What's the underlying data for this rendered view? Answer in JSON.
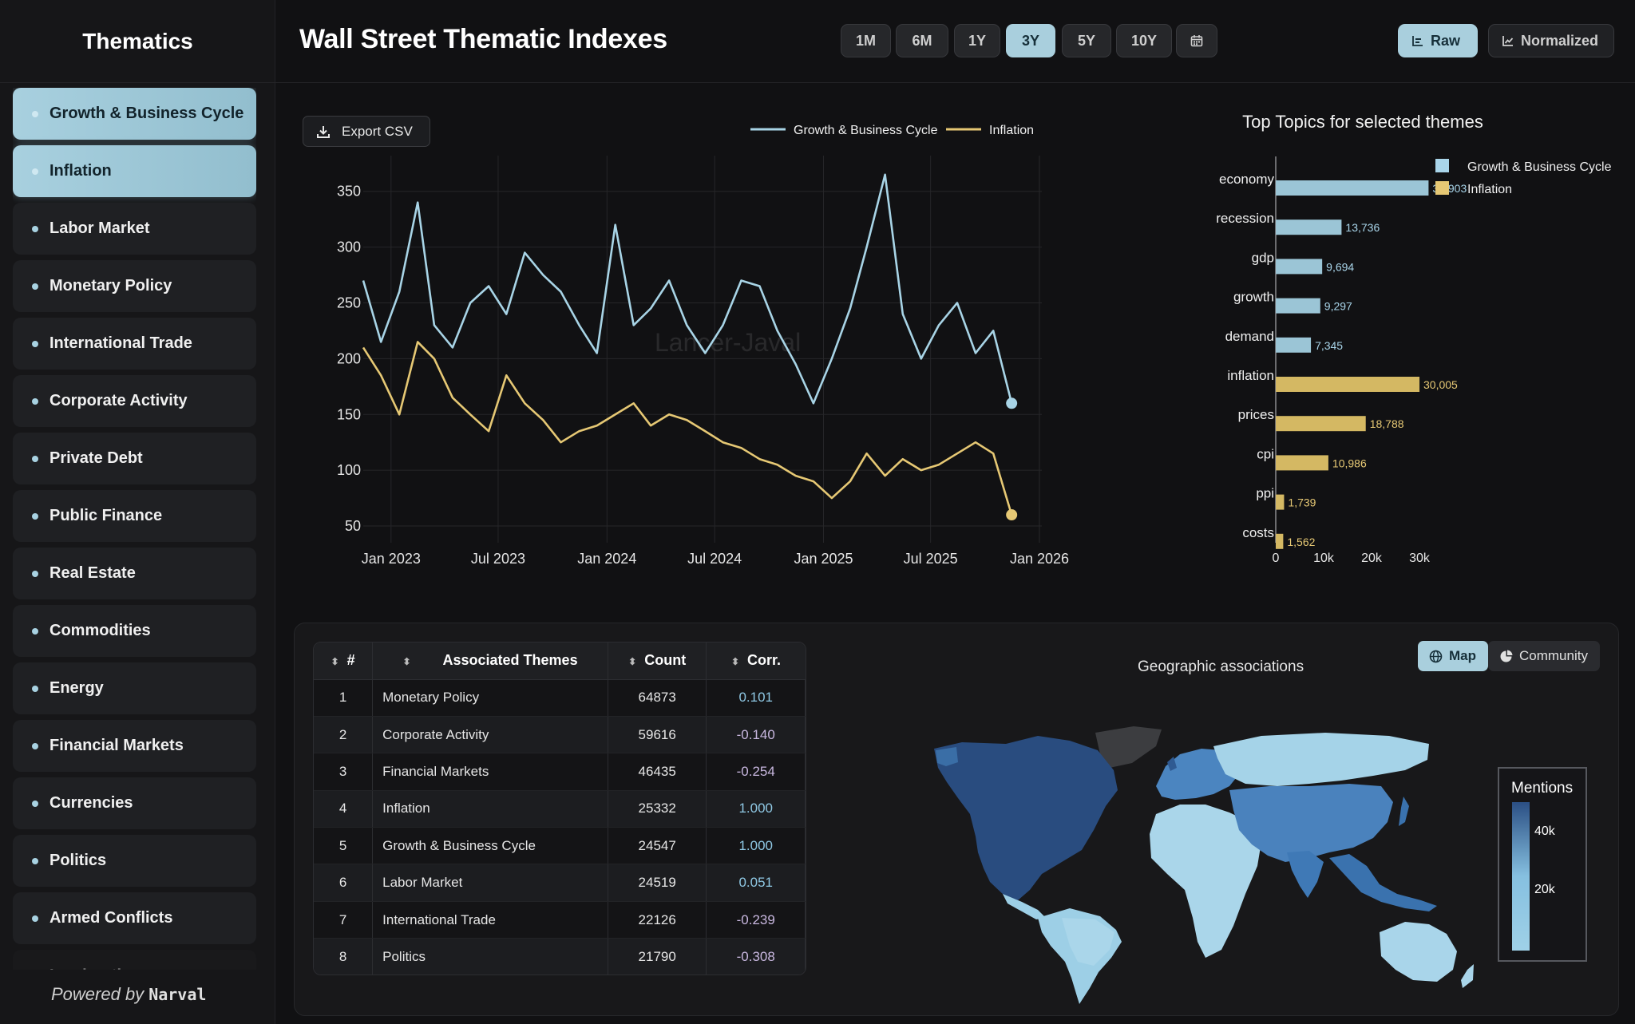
{
  "sidebar": {
    "title": "Thematics",
    "items": [
      {
        "label": "Growth & Business Cycle",
        "selected": true
      },
      {
        "label": "Inflation",
        "selected": true
      },
      {
        "label": "Labor Market"
      },
      {
        "label": "Monetary Policy"
      },
      {
        "label": "International Trade"
      },
      {
        "label": "Corporate Activity"
      },
      {
        "label": "Private Debt"
      },
      {
        "label": "Public Finance"
      },
      {
        "label": "Real Estate"
      },
      {
        "label": "Commodities"
      },
      {
        "label": "Energy"
      },
      {
        "label": "Financial Markets"
      },
      {
        "label": "Currencies"
      },
      {
        "label": "Politics"
      },
      {
        "label": "Armed Conflicts"
      },
      {
        "label": "Immigration"
      }
    ],
    "powered_by": "Powered by",
    "brand": "Narval"
  },
  "header": {
    "title": "Wall Street Thematic Indexes",
    "ranges": [
      "1M",
      "6M",
      "1Y",
      "3Y",
      "5Y",
      "10Y"
    ],
    "active_range": "3Y",
    "calendar_icon": "calendar-icon",
    "modes": {
      "raw": "Raw",
      "normalized": "Normalized",
      "active": "Raw"
    }
  },
  "export_label": "Export CSV",
  "colors": {
    "growth": "#a8d4e6",
    "inflation": "#e6c874",
    "accent": "#a9cfdd"
  },
  "chart_data": [
    {
      "type": "line",
      "title": "",
      "legend": [
        "Growth & Business Cycle",
        "Inflation"
      ],
      "legend_position": "top",
      "x_ticks": [
        "Jan 2023",
        "Jul 2023",
        "Jan 2024",
        "Jul 2024",
        "Jan 2025",
        "Jul 2025",
        "Jan 2026"
      ],
      "y_ticks": [
        50,
        100,
        150,
        200,
        250,
        300,
        350
      ],
      "ylim": [
        35,
        382
      ],
      "grid": true,
      "watermark": "Lancer-Javal",
      "series": [
        {
          "name": "Growth & Business Cycle",
          "x": [
            "2022-11",
            "2022-12",
            "2023-01",
            "2023-02",
            "2023-03",
            "2023-04",
            "2023-05",
            "2023-06",
            "2023-07",
            "2023-08",
            "2023-09",
            "2023-10",
            "2023-11",
            "2023-12",
            "2024-01",
            "2024-02",
            "2024-03",
            "2024-04",
            "2024-05",
            "2024-06",
            "2024-07",
            "2024-08",
            "2024-09",
            "2024-10",
            "2024-11",
            "2024-12",
            "2025-01",
            "2025-02",
            "2025-03",
            "2025-04",
            "2025-05",
            "2025-06",
            "2025-07",
            "2025-08",
            "2025-09",
            "2025-10",
            "2025-11"
          ],
          "values": [
            270,
            215,
            260,
            340,
            230,
            210,
            250,
            265,
            240,
            295,
            275,
            260,
            230,
            205,
            320,
            230,
            245,
            270,
            230,
            205,
            230,
            270,
            265,
            225,
            195,
            160,
            200,
            245,
            300,
            365,
            240,
            200,
            230,
            250,
            205,
            225,
            160
          ]
        },
        {
          "name": "Inflation",
          "x": [
            "2022-11",
            "2022-12",
            "2023-01",
            "2023-02",
            "2023-03",
            "2023-04",
            "2023-05",
            "2023-06",
            "2023-07",
            "2023-08",
            "2023-09",
            "2023-10",
            "2023-11",
            "2023-12",
            "2024-01",
            "2024-02",
            "2024-03",
            "2024-04",
            "2024-05",
            "2024-06",
            "2024-07",
            "2024-08",
            "2024-09",
            "2024-10",
            "2024-11",
            "2024-12",
            "2025-01",
            "2025-02",
            "2025-03",
            "2025-04",
            "2025-05",
            "2025-06",
            "2025-07",
            "2025-08",
            "2025-09",
            "2025-10",
            "2025-11"
          ],
          "values": [
            210,
            185,
            150,
            215,
            200,
            165,
            150,
            135,
            185,
            160,
            145,
            125,
            135,
            140,
            150,
            160,
            140,
            150,
            145,
            135,
            125,
            120,
            110,
            105,
            95,
            90,
            75,
            90,
            115,
            95,
            110,
            100,
            105,
            115,
            125,
            115,
            60
          ]
        }
      ]
    },
    {
      "type": "bar",
      "orientation": "horizontal",
      "title": "Top Topics for selected themes",
      "categories": [
        "economy",
        "recession",
        "gdp",
        "growth",
        "demand",
        "inflation",
        "prices",
        "cpi",
        "ppi",
        "costs"
      ],
      "values": [
        31903,
        13736,
        9694,
        9297,
        7345,
        30005,
        18788,
        10986,
        1739,
        1562
      ],
      "value_labels": [
        "31,903",
        "13,736",
        "9,694",
        "9,297",
        "7,345",
        "30,005",
        "18,788",
        "10,986",
        "1,739",
        "1,562"
      ],
      "groups": [
        "Growth & Business Cycle",
        "Growth & Business Cycle",
        "Growth & Business Cycle",
        "Growth & Business Cycle",
        "Growth & Business Cycle",
        "Inflation",
        "Inflation",
        "Inflation",
        "Inflation",
        "Inflation"
      ],
      "legend": [
        "Growth & Business Cycle",
        "Inflation"
      ],
      "x_ticks": [
        "0",
        "10k",
        "20k",
        "30k"
      ],
      "xlim": [
        0,
        35000
      ]
    }
  ],
  "table": {
    "headers": [
      "#",
      "Associated Themes",
      "Count",
      "Corr."
    ],
    "rows": [
      {
        "n": "1",
        "theme": "Monetary Policy",
        "count": "64873",
        "corr": "0.101"
      },
      {
        "n": "2",
        "theme": "Corporate Activity",
        "count": "59616",
        "corr": "-0.140"
      },
      {
        "n": "3",
        "theme": "Financial Markets",
        "count": "46435",
        "corr": "-0.254"
      },
      {
        "n": "4",
        "theme": "Inflation",
        "count": "25332",
        "corr": "1.000"
      },
      {
        "n": "5",
        "theme": "Growth & Business Cycle",
        "count": "24547",
        "corr": "1.000"
      },
      {
        "n": "6",
        "theme": "Labor Market",
        "count": "24519",
        "corr": "0.051"
      },
      {
        "n": "7",
        "theme": "International Trade",
        "count": "22126",
        "corr": "-0.239"
      },
      {
        "n": "8",
        "theme": "Politics",
        "count": "21790",
        "corr": "-0.308"
      }
    ]
  },
  "geo": {
    "title": "Geographic associations",
    "toggle": {
      "map": "Map",
      "community": "Community",
      "active": "Map"
    },
    "legend_title": "Mentions",
    "legend_ticks": [
      "40k",
      "20k"
    ]
  }
}
